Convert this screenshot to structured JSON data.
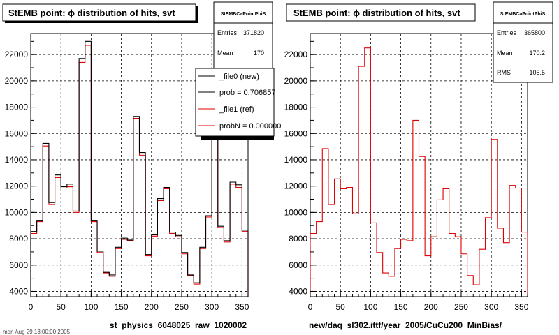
{
  "colors": {
    "background": "#ffffff",
    "frame": "#000000",
    "grid": "#000000",
    "ref_histogram": "#dd0000",
    "new_histogram": "#000000",
    "shadow": "#000000"
  },
  "chart_data": [
    {
      "type": "histogram",
      "title": "StEMB point:  ϕ distribution of hits, svt",
      "xlabel": "st_physics_6048025_raw_1020002",
      "ylabel": "",
      "xlim": [
        0,
        360
      ],
      "ylim": [
        3600,
        23600
      ],
      "x_ticks": [
        0,
        50,
        100,
        150,
        200,
        250,
        300,
        350
      ],
      "y_ticks": [
        4000,
        6000,
        8000,
        10000,
        12000,
        14000,
        16000,
        18000,
        20000,
        22000
      ],
      "y_tick_labels": [
        "4000",
        "6000",
        "8000",
        "10000",
        "12000",
        "14000",
        "16000",
        "18000",
        "20000",
        "22000"
      ],
      "grid": true,
      "bin_width": 10,
      "series": [
        {
          "name": "_file0 (new)",
          "style": "black line",
          "values": [
            8550,
            9400,
            15250,
            10750,
            12850,
            11950,
            12150,
            10100,
            21700,
            23000,
            9400,
            7050,
            5450,
            5250,
            7350,
            8050,
            7900,
            17300,
            14550,
            6800,
            8300,
            11050,
            11900,
            8500,
            8250,
            6950,
            5250,
            4650,
            7350,
            9750,
            15850,
            8950,
            7850,
            12300,
            12100,
            8650
          ]
        },
        {
          "name": "_file1 (ref)",
          "style": "red line",
          "values": [
            8400,
            9300,
            15050,
            10600,
            12650,
            11850,
            11950,
            10000,
            21400,
            22700,
            9300,
            6950,
            5400,
            5150,
            7250,
            7950,
            7850,
            17150,
            14350,
            6700,
            8200,
            10900,
            11800,
            8400,
            8150,
            6850,
            5200,
            4550,
            7250,
            9650,
            15650,
            8850,
            7750,
            12150,
            11900,
            8550
          ]
        }
      ],
      "legend": {
        "placement": "top-right",
        "entries": [
          "_file0 (new)",
          "prob = 0.706857",
          "_file1 (ref)",
          "probN = 0.000000"
        ]
      },
      "stats": {
        "title": "StEMBCaPointPhiS",
        "entries_label": "Entries",
        "entries_value": "371820",
        "mean_label": "Mean",
        "mean_value": "170"
      },
      "footer": "mon Aug 29 13:00:00 2005"
    },
    {
      "type": "histogram",
      "title": "StEMB point:  ϕ distribution of hits, svt",
      "xlabel": "new/daq_sl302.ittf/year_2005/CuCu200_MinBias/",
      "ylabel": "",
      "xlim": [
        0,
        360
      ],
      "ylim": [
        3600,
        23600
      ],
      "x_ticks": [
        0,
        50,
        100,
        150,
        200,
        250,
        300,
        350
      ],
      "y_ticks": [
        4000,
        6000,
        8000,
        10000,
        12000,
        14000,
        16000,
        18000,
        20000,
        22000
      ],
      "y_tick_labels": [
        "4000",
        "6000",
        "8000",
        "10000",
        "12000",
        "14000",
        "16000",
        "18000",
        "20000",
        "22000"
      ],
      "grid": true,
      "bin_width": 10,
      "series": [
        {
          "name": "_file1 (ref)",
          "style": "red line",
          "values": [
            8400,
            9300,
            14850,
            10600,
            12550,
            11800,
            11900,
            9900,
            21100,
            22500,
            9200,
            6950,
            5400,
            5150,
            7250,
            7950,
            7850,
            17000,
            14250,
            6700,
            8150,
            10950,
            11800,
            8400,
            8150,
            6850,
            5200,
            4500,
            7200,
            9600,
            15550,
            8800,
            7700,
            12050,
            11850,
            8500
          ]
        }
      ],
      "stats": {
        "title": "StEMBCaPointPhiS",
        "entries_label": "Entries",
        "entries_value": "365800",
        "mean_label": "Mean",
        "mean_value": "170.2",
        "rms_label": "RMS",
        "rms_value": "105.5"
      }
    }
  ]
}
